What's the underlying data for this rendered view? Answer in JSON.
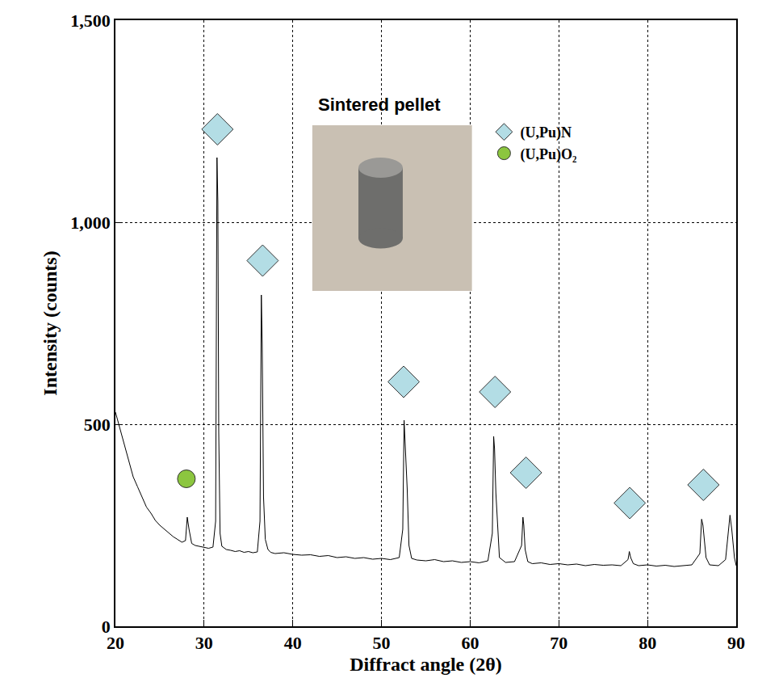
{
  "chart_data": {
    "type": "line",
    "xlabel": "Diffract angle (2θ)",
    "ylabel": "Intensity (counts)",
    "inset_label": "Sintered pellet",
    "xlim": [
      20,
      90
    ],
    "xticks": [
      20,
      30,
      40,
      50,
      60,
      70,
      80,
      90
    ],
    "ylim": [
      0,
      1500
    ],
    "yticks": [
      0,
      500,
      {
        "value": 1000,
        "label": "1,000"
      },
      {
        "value": 1500,
        "label": "1,500"
      }
    ],
    "grid": true,
    "legend": "top right",
    "series": [
      {
        "type": "line",
        "color": "#000000",
        "x": [
          20,
          20.5,
          21,
          21.5,
          22,
          22.5,
          23,
          23.5,
          24,
          24.5,
          25,
          25.5,
          26,
          26.5,
          27,
          27.5,
          27.9,
          28.1,
          28.3,
          28.6,
          29,
          29.5,
          30,
          30.5,
          31,
          31.3,
          31.45,
          31.55,
          31.65,
          31.8,
          32,
          32.5,
          33,
          33.5,
          34,
          34.5,
          35,
          35.5,
          36,
          36.3,
          36.45,
          36.55,
          36.7,
          36.9,
          37.2,
          37.5,
          38,
          39,
          40,
          41,
          42,
          43,
          44,
          45,
          46,
          47,
          48,
          49,
          50,
          51,
          52,
          52.4,
          52.55,
          52.65,
          52.8,
          52.9,
          53.1,
          53.4,
          54,
          55,
          56,
          57,
          58,
          59,
          60,
          61,
          62,
          62.5,
          62.65,
          62.75,
          62.9,
          63.05,
          63.3,
          64,
          65,
          65.8,
          65.95,
          66.05,
          66.2,
          66.5,
          67,
          68,
          69,
          70,
          71,
          72,
          73,
          74,
          75,
          76,
          77,
          77.8,
          77.95,
          78.1,
          78.4,
          79,
          80,
          81,
          82,
          83,
          84,
          85,
          85.9,
          86.1,
          86.25,
          86.4,
          86.6,
          87,
          88,
          88.8,
          89.1,
          89.3,
          89.5,
          89.8,
          90
        ],
        "values": [
          530,
          490,
          445,
          405,
          370,
          345,
          320,
          295,
          280,
          262,
          250,
          240,
          230,
          222,
          215,
          208,
          212,
          270,
          240,
          205,
          200,
          198,
          195,
          193,
          196,
          260,
          1160,
          1050,
          480,
          230,
          198,
          190,
          188,
          185,
          187,
          183,
          185,
          182,
          184,
          260,
          820,
          700,
          320,
          215,
          190,
          183,
          180,
          182,
          178,
          176,
          177,
          173,
          175,
          170,
          172,
          168,
          170,
          166,
          168,
          165,
          170,
          240,
          510,
          460,
          400,
          340,
          200,
          168,
          164,
          162,
          165,
          160,
          162,
          158,
          160,
          157,
          162,
          230,
          470,
          440,
          330,
          260,
          170,
          158,
          160,
          200,
          270,
          250,
          190,
          160,
          155,
          157,
          153,
          155,
          152,
          154,
          150,
          153,
          151,
          152,
          150,
          165,
          185,
          170,
          155,
          150,
          152,
          149,
          151,
          148,
          150,
          152,
          180,
          265,
          250,
          220,
          170,
          152,
          150,
          165,
          230,
          275,
          240,
          170,
          150
        ]
      },
      {
        "name": "(U,Pu)N",
        "type": "scatter",
        "marker": "diamond",
        "color": "#b3dde5",
        "x": [
          31.5,
          36.6,
          52.5,
          62.8,
          66.3,
          78,
          86.3
        ],
        "values": [
          1230,
          905,
          605,
          580,
          380,
          305,
          350
        ]
      },
      {
        "name": "(U,Pu)O₂",
        "type": "scatter",
        "marker": "circle",
        "color": "#8cc63f",
        "x": [
          28
        ],
        "values": [
          365
        ]
      }
    ]
  }
}
